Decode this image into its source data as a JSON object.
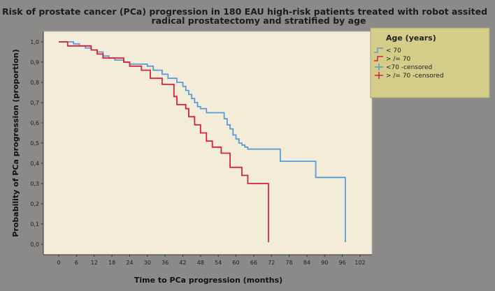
{
  "chart_data": {
    "type": "line",
    "subtype": "kaplan-meier",
    "title_line1": "Risk of prostate cancer (PCa) progression in 180 EAU high-risk patients treated with robot assited",
    "title_line2": "radical prostatectomy and stratified by age",
    "xlabel": "Time to PCa progression (months)",
    "ylabel": "Probability of PCa progression (proportion)",
    "xlim": [
      0,
      102
    ],
    "ylim": [
      0,
      1
    ],
    "x_ticks": [
      0,
      6,
      12,
      18,
      24,
      30,
      36,
      42,
      48,
      54,
      60,
      66,
      72,
      78,
      84,
      90,
      96,
      102
    ],
    "y_tick_values": [
      0,
      0.1,
      0.2,
      0.3,
      0.4,
      0.5,
      0.6,
      0.7,
      0.8,
      0.9,
      1.0
    ],
    "y_tick_labels": [
      "0,0",
      "0,1",
      "0,2",
      "0,3",
      "0,4",
      "0,5",
      "0,6",
      "0,7",
      "0,8",
      "0,9",
      "1,0"
    ],
    "grid": false,
    "legend_position": "top-right-outside",
    "legend_title": "Age (years)",
    "legend_items": [
      {
        "label": "< 70",
        "color": "#5b9bd5",
        "symbol": "step"
      },
      {
        "label": "> /= 70",
        "color": "#d6223b",
        "symbol": "step"
      },
      {
        "label": "<70 -censored",
        "color": "#5b9bd5",
        "symbol": "cross"
      },
      {
        "label": "> /= 70 -censored",
        "color": "#d6223b",
        "symbol": "cross"
      }
    ],
    "series": [
      {
        "name": "< 70",
        "color": "#5b9bd5",
        "x": [
          0,
          5,
          7,
          9,
          11,
          13,
          15,
          17,
          19,
          22,
          24,
          30,
          32,
          35,
          37,
          40,
          42,
          43,
          44,
          45,
          46,
          47,
          48,
          50,
          56,
          57,
          58,
          59,
          60,
          61,
          62,
          63,
          64,
          75,
          87,
          97
        ],
        "y": [
          1.0,
          0.99,
          0.98,
          0.97,
          0.96,
          0.95,
          0.93,
          0.92,
          0.91,
          0.9,
          0.89,
          0.88,
          0.86,
          0.84,
          0.82,
          0.8,
          0.78,
          0.76,
          0.74,
          0.72,
          0.7,
          0.68,
          0.67,
          0.65,
          0.62,
          0.59,
          0.57,
          0.54,
          0.52,
          0.5,
          0.49,
          0.48,
          0.47,
          0.41,
          0.33,
          0.01
        ]
      },
      {
        "name": "> /= 70",
        "color": "#d6223b",
        "x": [
          0,
          3,
          8,
          11,
          13,
          15,
          18,
          22,
          24,
          28,
          31,
          35,
          39,
          40,
          43,
          44,
          46,
          48,
          50,
          52,
          55,
          58,
          62,
          64,
          71
        ],
        "y": [
          1.0,
          0.98,
          0.98,
          0.96,
          0.94,
          0.92,
          0.92,
          0.9,
          0.88,
          0.86,
          0.82,
          0.79,
          0.73,
          0.69,
          0.67,
          0.63,
          0.59,
          0.55,
          0.51,
          0.48,
          0.45,
          0.38,
          0.34,
          0.3,
          0.01
        ]
      }
    ]
  }
}
